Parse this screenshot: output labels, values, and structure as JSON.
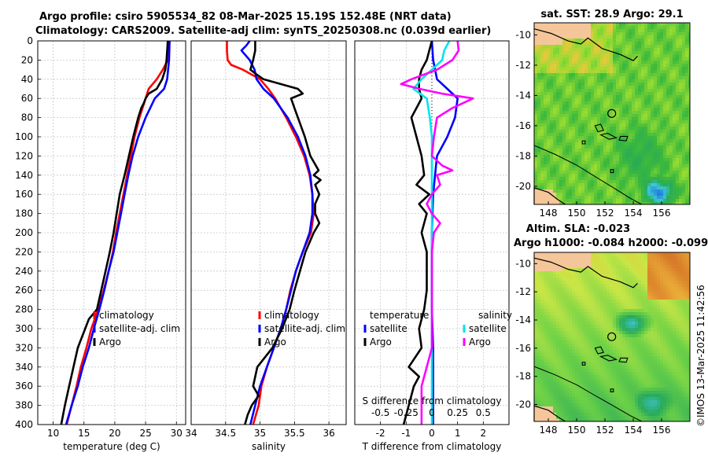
{
  "title_line1": "Argo profile: csiro 5905534_82 08-Mar-2025 15.19S 152.48E (NRT data)",
  "title_line2": "Climatology: CARS2009. Satellite-adj clim: synTS_20250308.nc (0.039d earlier)",
  "side_label": "©IMOS 13-Mar-2025 11:42:56",
  "colors": {
    "climatology": "#ff0000",
    "satellite": "#0000ff",
    "argo": "#000000",
    "satellite_salinity": "#00e5ee",
    "argo_salinity": "#ff00ff",
    "land": "#f5c69a"
  },
  "chart_data": [
    {
      "id": "temperature",
      "type": "line",
      "xlabel": "temperature (deg C)",
      "ylabel": "",
      "xlim": [
        7.5,
        31.5
      ],
      "ylim": [
        400,
        0
      ],
      "xticks": [
        10,
        15,
        20,
        25,
        30
      ],
      "yticks": [
        0,
        20,
        40,
        60,
        80,
        100,
        120,
        140,
        160,
        180,
        200,
        220,
        240,
        260,
        280,
        300,
        320,
        340,
        360,
        380,
        400
      ],
      "grid": true,
      "legend": [
        "climatology",
        "satellite-adj. clim",
        "Argo"
      ],
      "series": [
        {
          "name": "climatology",
          "color": "#ff0000",
          "depth": [
            0,
            20,
            30,
            40,
            50,
            60,
            80,
            100,
            120,
            140,
            160,
            180,
            200,
            220,
            240,
            260,
            280,
            300,
            320,
            340,
            360,
            380,
            400
          ],
          "values": [
            28.9,
            28.6,
            27.8,
            26.8,
            25.5,
            25.0,
            24.0,
            23.2,
            22.6,
            22.0,
            21.4,
            20.8,
            20.2,
            19.7,
            19.0,
            18.2,
            17.3,
            16.2,
            15.4,
            14.5,
            13.8,
            13.0,
            12.2
          ]
        },
        {
          "name": "satellite-adj. clim",
          "color": "#0000ff",
          "depth": [
            0,
            20,
            40,
            50,
            60,
            80,
            100,
            120,
            140,
            160,
            180,
            200,
            220,
            240,
            260,
            280,
            300,
            320,
            340,
            360,
            380,
            400
          ],
          "values": [
            28.9,
            28.8,
            28.5,
            28.0,
            26.5,
            25.0,
            23.8,
            22.9,
            22.2,
            21.6,
            21.0,
            20.4,
            19.8,
            19.0,
            18.3,
            17.5,
            16.6,
            15.8,
            14.8,
            14.0,
            13.0,
            12.1
          ]
        },
        {
          "name": "Argo",
          "color": "#000000",
          "depth": [
            0,
            20,
            30,
            40,
            50,
            55,
            60,
            65,
            70,
            80,
            100,
            120,
            140,
            160,
            180,
            200,
            220,
            240,
            260,
            280,
            290,
            300,
            320,
            340,
            360,
            380,
            400
          ],
          "values": [
            28.6,
            28.4,
            28.2,
            27.7,
            26.8,
            25.5,
            25.0,
            24.7,
            24.3,
            23.8,
            23.0,
            22.3,
            21.6,
            20.8,
            20.3,
            19.8,
            19.2,
            18.5,
            17.8,
            17.1,
            15.8,
            15.2,
            14.0,
            13.3,
            12.6,
            11.9,
            11.3
          ]
        }
      ]
    },
    {
      "id": "salinity",
      "type": "line",
      "xlabel": "salinity",
      "ylabel": "",
      "xlim": [
        34.0,
        36.25
      ],
      "ylim": [
        400,
        0
      ],
      "xticks": [
        34,
        34.5,
        35,
        35.5,
        36
      ],
      "grid": true,
      "legend": [
        "climatology",
        "satellite-adj. clim",
        "Argo"
      ],
      "series": [
        {
          "name": "climatology",
          "color": "#ff0000",
          "depth": [
            0,
            10,
            20,
            25,
            30,
            40,
            50,
            60,
            80,
            100,
            120,
            140,
            160,
            180,
            200,
            220,
            240,
            260,
            280,
            300,
            320,
            340,
            360,
            380,
            400
          ],
          "values": [
            34.52,
            34.52,
            34.53,
            34.58,
            34.75,
            35.0,
            35.12,
            35.22,
            35.38,
            35.52,
            35.64,
            35.72,
            35.76,
            35.78,
            35.74,
            35.62,
            35.52,
            35.44,
            35.38,
            35.3,
            35.2,
            35.1,
            35.02,
            34.98,
            34.9
          ]
        },
        {
          "name": "satellite-adj. clim",
          "color": "#0000ff",
          "depth": [
            0,
            5,
            10,
            20,
            30,
            40,
            50,
            60,
            80,
            100,
            120,
            140,
            160,
            180,
            200,
            220,
            240,
            260,
            280,
            300,
            320,
            340,
            360,
            380,
            400
          ],
          "values": [
            34.85,
            34.8,
            34.73,
            34.85,
            34.92,
            34.95,
            35.05,
            35.2,
            35.4,
            35.55,
            35.66,
            35.73,
            35.76,
            35.76,
            35.72,
            35.62,
            35.52,
            35.45,
            35.38,
            35.3,
            35.2,
            35.1,
            35.0,
            34.93,
            34.86
          ]
        },
        {
          "name": "Argo",
          "color": "#000000",
          "depth": [
            0,
            10,
            20,
            30,
            35,
            40,
            45,
            50,
            55,
            60,
            70,
            80,
            100,
            120,
            135,
            140,
            145,
            150,
            160,
            170,
            180,
            190,
            200,
            220,
            240,
            260,
            280,
            300,
            320,
            340,
            360,
            370,
            380,
            390,
            400
          ],
          "values": [
            34.93,
            34.93,
            34.9,
            34.86,
            34.95,
            35.05,
            35.3,
            35.55,
            35.62,
            35.45,
            35.5,
            35.55,
            35.65,
            35.73,
            35.85,
            35.78,
            35.88,
            35.8,
            35.86,
            35.8,
            35.8,
            35.86,
            35.78,
            35.66,
            35.58,
            35.5,
            35.43,
            35.32,
            35.18,
            34.96,
            34.9,
            34.98,
            34.88,
            34.82,
            34.78
          ]
        }
      ]
    },
    {
      "id": "differences",
      "type": "line",
      "xlabel": "T difference from climatology",
      "top_label": "S difference from climatology",
      "xlim": [
        -3.0,
        3.0
      ],
      "ylim": [
        400,
        0
      ],
      "xticks": [
        -2,
        -1,
        0,
        1,
        2
      ],
      "xticklabels": [
        "-2",
        "-1",
        "0",
        "1",
        "2"
      ],
      "top_ticks": [
        -0.5,
        -0.25,
        0,
        0.25,
        0.5
      ],
      "top_ticklabels": [
        "-0.5",
        "-0.25",
        "0",
        "0.25",
        "0.5"
      ],
      "s_scale": 4,
      "grid": true,
      "legend_left_title": "temperature",
      "legend_right_title": "salinity",
      "legend": [
        "satellite",
        "Argo",
        "satellite",
        "Argo"
      ],
      "series": [
        {
          "name": "T satellite",
          "color": "#0000ff",
          "kind": "T",
          "depth": [
            0,
            20,
            40,
            50,
            60,
            80,
            100,
            120,
            160,
            200,
            240,
            280,
            320,
            360,
            400
          ],
          "values": [
            0.0,
            0.05,
            0.2,
            0.6,
            1.0,
            0.9,
            0.6,
            0.2,
            0.05,
            0.0,
            0.0,
            0.0,
            0.05,
            0.05,
            0.05
          ]
        },
        {
          "name": "T Argo",
          "color": "#000000",
          "kind": "T",
          "depth": [
            0,
            10,
            20,
            30,
            40,
            50,
            60,
            80,
            100,
            120,
            140,
            150,
            160,
            170,
            180,
            190,
            200,
            220,
            240,
            260,
            280,
            300,
            320,
            340,
            350,
            360,
            380,
            400
          ],
          "values": [
            0.0,
            -0.1,
            -0.2,
            -0.4,
            -0.5,
            -0.5,
            -0.4,
            -0.8,
            -0.6,
            -0.4,
            -0.3,
            -0.6,
            -0.1,
            -0.5,
            -0.2,
            -0.3,
            -0.4,
            -0.2,
            -0.2,
            -0.2,
            -0.3,
            -0.5,
            -0.4,
            -0.9,
            -0.5,
            -0.7,
            -0.9,
            -1.1
          ]
        },
        {
          "name": "S satellite",
          "color": "#00e5ee",
          "kind": "S",
          "depth": [
            0,
            10,
            20,
            30,
            40,
            50,
            60,
            80,
            100,
            120,
            140,
            160,
            200,
            240,
            280,
            320,
            360,
            400
          ],
          "values": [
            0.17,
            0.12,
            0.1,
            0.0,
            -0.1,
            -0.18,
            -0.05,
            -0.02,
            0.0,
            0.0,
            0.0,
            0.0,
            0.0,
            0.0,
            0.0,
            0.0,
            0.0,
            0.0
          ]
        },
        {
          "name": "S Argo",
          "color": "#ff00ff",
          "kind": "S",
          "depth": [
            0,
            10,
            20,
            30,
            40,
            45,
            50,
            55,
            60,
            70,
            80,
            100,
            120,
            130,
            135,
            140,
            150,
            160,
            170,
            180,
            190,
            200,
            220,
            240,
            260,
            280,
            300,
            320,
            340,
            360,
            380,
            400
          ],
          "values": [
            0.25,
            0.26,
            0.2,
            0.05,
            -0.2,
            -0.3,
            -0.12,
            0.1,
            0.4,
            0.2,
            0.05,
            0.02,
            0.0,
            0.1,
            0.2,
            0.05,
            0.08,
            0.0,
            -0.05,
            0.0,
            0.08,
            0.02,
            0.0,
            0.0,
            0.0,
            0.0,
            0.0,
            0.0,
            -0.05,
            -0.1,
            -0.1,
            -0.1
          ]
        }
      ]
    },
    {
      "id": "sst_map",
      "type": "heatmap",
      "title": "sat. SST: 28.9 Argo: 29.1",
      "field": "sst",
      "xlim": [
        147,
        158
      ],
      "ylim": [
        -21.2,
        -9.2
      ],
      "xticks": [
        148,
        150,
        152,
        154,
        156
      ],
      "yticks": [
        -10,
        -12,
        -14,
        -16,
        -18,
        -20
      ],
      "marker": {
        "lon": 152.48,
        "lat": -15.19
      }
    },
    {
      "id": "sla_map",
      "type": "heatmap",
      "title": "Altim. SLA: -0.023",
      "subtitle": "Argo h1000: -0.084 h2000: -0.099",
      "field": "sla",
      "xlim": [
        147,
        158
      ],
      "ylim": [
        -21.2,
        -9.2
      ],
      "xticks": [
        148,
        150,
        152,
        154,
        156
      ],
      "yticks": [
        -10,
        -12,
        -14,
        -16,
        -18,
        -20
      ],
      "marker": {
        "lon": 152.48,
        "lat": -15.19
      }
    }
  ]
}
